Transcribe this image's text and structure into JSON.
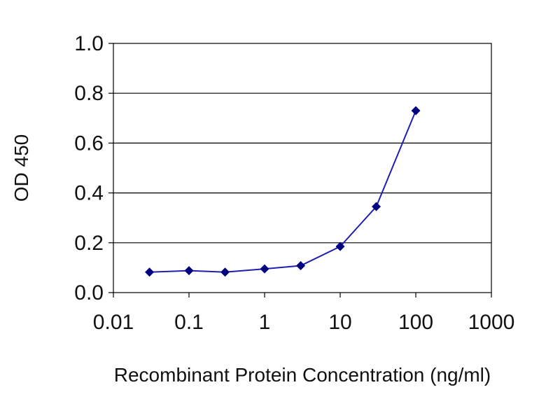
{
  "chart_data": {
    "type": "line",
    "title": "",
    "xlabel": "Recombinant Protein Concentration (ng/ml)",
    "ylabel": "OD 450",
    "x_scale": "log",
    "xlim": [
      0.01,
      1000
    ],
    "ylim": [
      0.0,
      1.0
    ],
    "x_ticks": [
      "0.01",
      "0.1",
      "1",
      "10",
      "100",
      "1000"
    ],
    "y_ticks": [
      "0.0",
      "0.2",
      "0.4",
      "0.6",
      "0.8",
      "1.0"
    ],
    "grid": "horizontal",
    "legend": "none",
    "plot_background": "#ffffff",
    "gridline_color": "#000000",
    "line_color": "#2020b0",
    "marker_color": "#000080",
    "marker": "diamond",
    "series": [
      {
        "x": [
          0.03,
          0.1,
          0.3,
          1,
          3,
          10,
          30,
          100
        ],
        "y": [
          0.082,
          0.088,
          0.082,
          0.095,
          0.108,
          0.185,
          0.345,
          0.73
        ]
      }
    ]
  }
}
